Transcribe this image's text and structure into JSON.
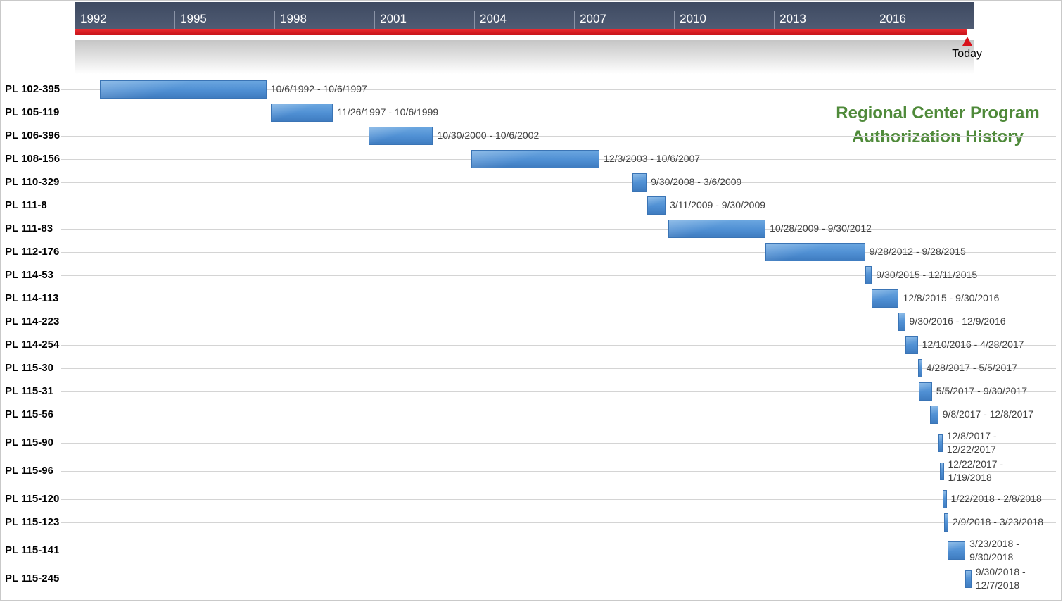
{
  "chart_data": {
    "type": "gantt",
    "title_lines": [
      "Regional Center Program",
      "Authorization History"
    ],
    "axis": {
      "start": "1992-01-01",
      "end": "2018-12-31",
      "tick_labels": [
        "1992",
        "1995",
        "1998",
        "2001",
        "2004",
        "2007",
        "2010",
        "2013",
        "2016"
      ],
      "today_label": "Today",
      "today": "2018-10-20"
    },
    "tasks": [
      {
        "label": "PL 102-395",
        "start": "1992-10-06",
        "end": "1997-10-06",
        "range_text": [
          "10/6/1992 - 10/6/1997"
        ]
      },
      {
        "label": "PL 105-119",
        "start": "1997-11-26",
        "end": "1999-10-06",
        "range_text": [
          "11/26/1997 - 10/6/1999"
        ]
      },
      {
        "label": "PL 106-396",
        "start": "2000-10-30",
        "end": "2002-10-06",
        "range_text": [
          "10/30/2000 - 10/6/2002"
        ]
      },
      {
        "label": "PL 108-156",
        "start": "2003-12-03",
        "end": "2007-10-06",
        "range_text": [
          "12/3/2003 - 10/6/2007"
        ]
      },
      {
        "label": "PL 110-329",
        "start": "2008-09-30",
        "end": "2009-03-06",
        "range_text": [
          "9/30/2008 - 3/6/2009"
        ]
      },
      {
        "label": "PL 111-8",
        "start": "2009-03-11",
        "end": "2009-09-30",
        "range_text": [
          "3/11/2009 - 9/30/2009"
        ]
      },
      {
        "label": "PL 111-83",
        "start": "2009-10-28",
        "end": "2012-09-30",
        "range_text": [
          "10/28/2009 - 9/30/2012"
        ]
      },
      {
        "label": "PL 112-176",
        "start": "2012-09-28",
        "end": "2015-09-28",
        "range_text": [
          "9/28/2012 - 9/28/2015"
        ]
      },
      {
        "label": "PL 114-53",
        "start": "2015-09-30",
        "end": "2015-12-11",
        "range_text": [
          "9/30/2015 - 12/11/2015"
        ]
      },
      {
        "label": "PL 114-113",
        "start": "2015-12-08",
        "end": "2016-09-30",
        "range_text": [
          "12/8/2015 - 9/30/2016"
        ]
      },
      {
        "label": "PL 114-223",
        "start": "2016-09-30",
        "end": "2016-12-09",
        "range_text": [
          "9/30/2016 - 12/9/2016"
        ]
      },
      {
        "label": "PL 114-254",
        "start": "2016-12-10",
        "end": "2017-04-28",
        "range_text": [
          "12/10/2016 - 4/28/2017"
        ]
      },
      {
        "label": "PL 115-30",
        "start": "2017-04-28",
        "end": "2017-05-05",
        "range_text": [
          "4/28/2017 - 5/5/2017"
        ]
      },
      {
        "label": "PL 115-31",
        "start": "2017-05-05",
        "end": "2017-09-30",
        "range_text": [
          "5/5/2017 - 9/30/2017"
        ]
      },
      {
        "label": "PL 115-56",
        "start": "2017-09-08",
        "end": "2017-12-08",
        "range_text": [
          "9/8/2017 - 12/8/2017"
        ]
      },
      {
        "label": "PL 115-90",
        "start": "2017-12-08",
        "end": "2017-12-22",
        "range_text": [
          "12/8/2017 -",
          "12/22/2017"
        ]
      },
      {
        "label": "PL 115-96",
        "start": "2017-12-22",
        "end": "2018-01-19",
        "range_text": [
          "12/22/2017 -",
          "1/19/2018"
        ]
      },
      {
        "label": "PL 115-120",
        "start": "2018-01-22",
        "end": "2018-02-08",
        "range_text": [
          "1/22/2018 - 2/8/2018"
        ]
      },
      {
        "label": "PL 115-123",
        "start": "2018-02-09",
        "end": "2018-03-23",
        "range_text": [
          "2/9/2018 - 3/23/2018"
        ]
      },
      {
        "label": "PL 115-141",
        "start": "2018-03-23",
        "end": "2018-09-30",
        "range_text": [
          "3/23/2018 -",
          "9/30/2018"
        ]
      },
      {
        "label": "PL 115-245",
        "start": "2018-09-30",
        "end": "2018-12-07",
        "range_text": [
          "9/30/2018 -",
          "12/7/2018"
        ]
      }
    ]
  }
}
